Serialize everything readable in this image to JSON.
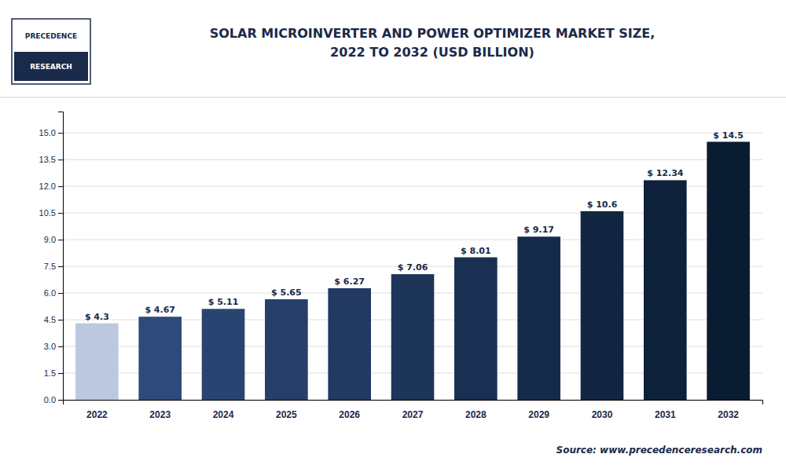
{
  "chart_data": {
    "type": "bar",
    "title": "SOLAR MICROINVERTER AND POWER OPTIMIZER MARKET SIZE,\n2022 TO 2032 (USD BILLION)",
    "categories": [
      "2022",
      "2023",
      "2024",
      "2025",
      "2026",
      "2027",
      "2028",
      "2029",
      "2030",
      "2031",
      "2032"
    ],
    "values": [
      4.3,
      4.67,
      5.11,
      5.65,
      6.27,
      7.06,
      8.01,
      9.17,
      10.6,
      12.34,
      14.5
    ],
    "value_labels": [
      "$ 4.3",
      "$ 4.67",
      "$ 5.11",
      "$ 5.65",
      "$ 6.27",
      "$ 7.06",
      "$ 8.01",
      "$ 9.17",
      "$ 10.6",
      "$ 12.34",
      "$ 14.5"
    ],
    "colors": [
      "#bbc8e0",
      "#2e4a7a",
      "#2a4472",
      "#263f6a",
      "#223a62",
      "#1e355a",
      "#1a3052",
      "#162b4a",
      "#122642",
      "#0e213a",
      "#0a1c32"
    ],
    "ylim": [
      0,
      16.2
    ],
    "yticks": [
      {
        "value": 0,
        "label": "0.0"
      },
      1.5,
      {
        "value": 3,
        "label": "3.0"
      },
      4.5,
      {
        "value": 6,
        "label": "6.0"
      },
      7.5,
      {
        "value": 9,
        "label": "9.0"
      },
      10.5,
      {
        "value": 12,
        "label": "12.0"
      },
      13.5,
      {
        "value": 15,
        "label": "15.0"
      }
    ],
    "grid": true,
    "data_labels": true,
    "annotations": [
      "Source: www.precedenceresearch.com",
      "PRECEDENCE",
      "RESEARCH"
    ]
  }
}
